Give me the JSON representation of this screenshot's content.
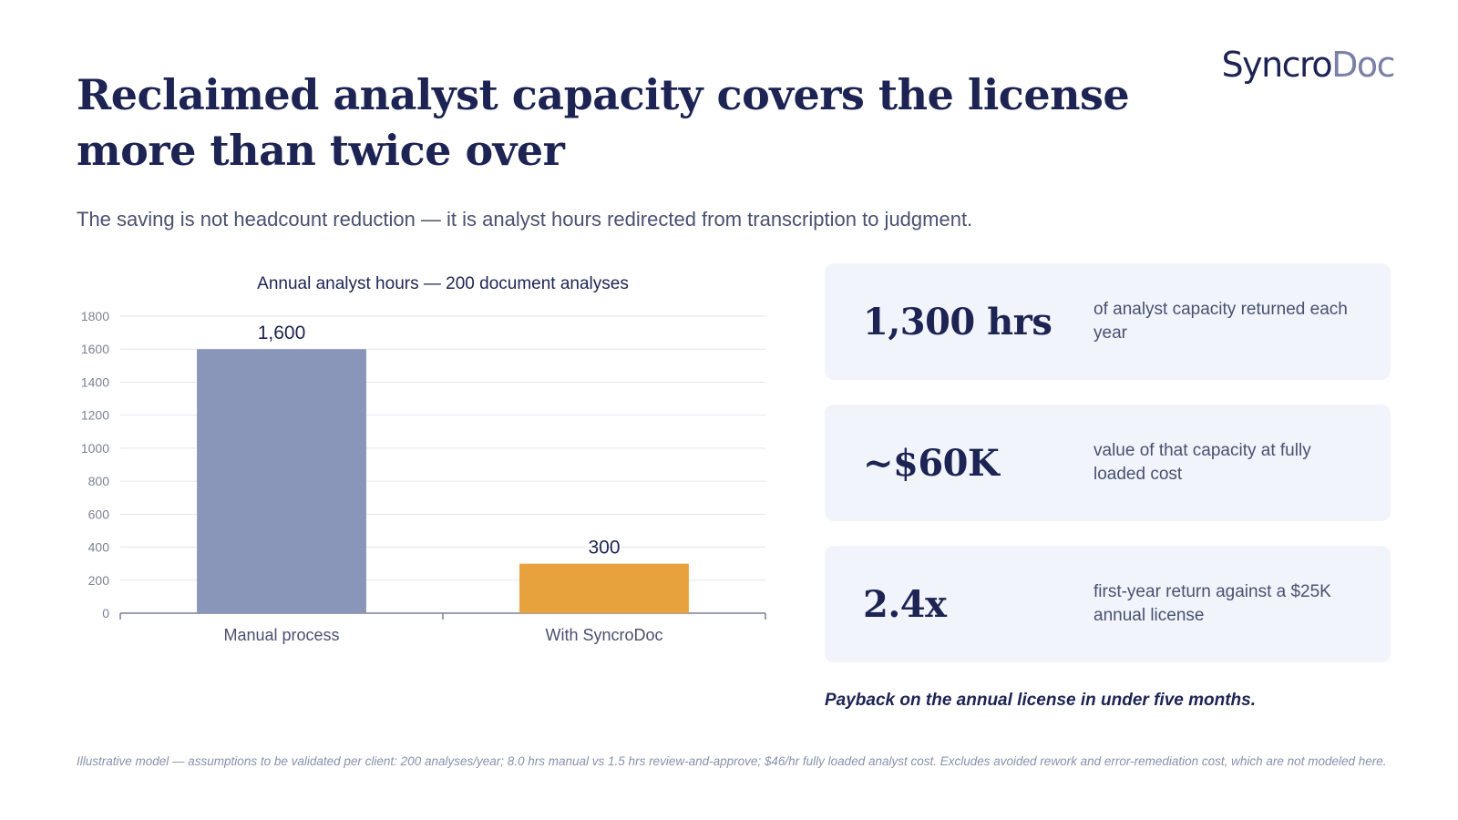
{
  "brand": {
    "part1": "Syncro",
    "part2": "Doc"
  },
  "title": "Reclaimed analyst capacity covers the license more than twice over",
  "subtitle": "The saving is not headcount reduction — it is analyst hours redirected from transcription to judgment.",
  "chart_data": {
    "type": "bar",
    "title": "Annual analyst hours — 200 document analyses",
    "categories": [
      "Manual process",
      "With SyncroDoc"
    ],
    "values": [
      1600,
      300
    ],
    "data_labels": [
      "1,600",
      "300"
    ],
    "colors": [
      "#8a96b9",
      "#e8a23d"
    ],
    "xlabel": "",
    "ylabel": "",
    "ylim": [
      0,
      1800
    ],
    "yticks": [
      0,
      200,
      400,
      600,
      800,
      1000,
      1200,
      1400,
      1600,
      1800
    ],
    "grid": true
  },
  "cards": [
    {
      "value": "1,300 hrs",
      "desc": "of analyst capacity returned each year"
    },
    {
      "value": "~$60K",
      "desc": "value of that capacity at fully loaded cost"
    },
    {
      "value": "2.4x",
      "desc": "first-year return against a $25K annual license"
    }
  ],
  "payback": "Payback on the annual license in under five months.",
  "footnote": "Illustrative model — assumptions to be validated per client: 200 analyses/year; 8.0 hrs manual vs 1.5 hrs review-and-approve; $46/hr fully loaded analyst cost. Excludes avoided rework and error-remediation cost, which are not modeled here."
}
